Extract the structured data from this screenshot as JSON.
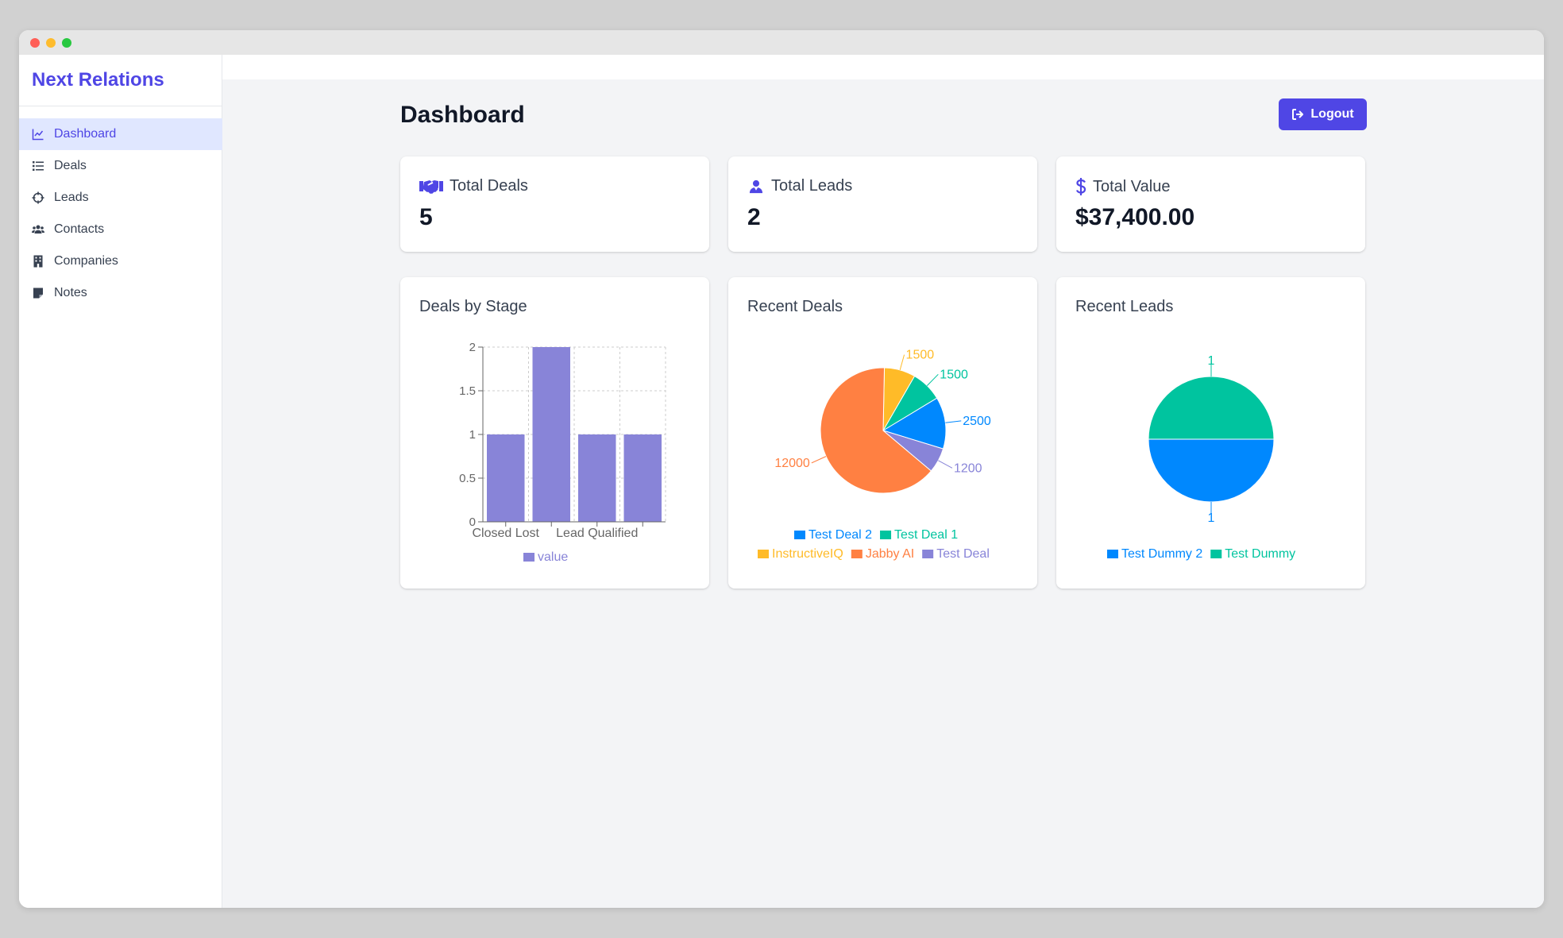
{
  "app": {
    "brand": "Next Relations"
  },
  "sidebar": {
    "items": [
      {
        "label": "Dashboard",
        "icon": "chart-line-icon",
        "active": true
      },
      {
        "label": "Deals",
        "icon": "list-icon",
        "active": false
      },
      {
        "label": "Leads",
        "icon": "crosshairs-icon",
        "active": false
      },
      {
        "label": "Contacts",
        "icon": "users-icon",
        "active": false
      },
      {
        "label": "Companies",
        "icon": "building-icon",
        "active": false
      },
      {
        "label": "Notes",
        "icon": "sticky-note-icon",
        "active": false
      }
    ]
  },
  "header": {
    "title": "Dashboard",
    "logout_label": "Logout"
  },
  "stats": {
    "total_deals": {
      "label": "Total Deals",
      "value": "5",
      "icon": "handshake-icon"
    },
    "total_leads": {
      "label": "Total Leads",
      "value": "2",
      "icon": "user-tie-icon"
    },
    "total_value": {
      "label": "Total Value",
      "value": "$37,400.00",
      "icon": "dollar-icon"
    }
  },
  "colors": {
    "accent": "#4f46e5",
    "bar": "#8884d8",
    "blue": "#0088fe",
    "green": "#00c49f",
    "yellow": "#ffbb28",
    "orange": "#ff8042",
    "purple": "#8884d8"
  },
  "chart_data": [
    {
      "title": "Deals by Stage",
      "type": "bar",
      "categories": [
        "Closed Lost",
        "",
        "Lead Qualified",
        ""
      ],
      "tick_labels": [
        "Closed Lost",
        "Lead Qualified"
      ],
      "series": [
        {
          "name": "value",
          "values": [
            1,
            2,
            1,
            1
          ],
          "color": "#8884d8"
        }
      ],
      "ylim": [
        0,
        2
      ],
      "yticks": [
        "0",
        "0.5",
        "1",
        "1.5",
        "2"
      ],
      "grid": true,
      "legend": "bottom"
    },
    {
      "title": "Recent Deals",
      "type": "pie",
      "slices": [
        {
          "name": "Test Deal 2",
          "value": 2500,
          "label": "2500",
          "color": "#0088fe"
        },
        {
          "name": "Test Deal 1",
          "value": 1500,
          "label": "1500",
          "color": "#00c49f"
        },
        {
          "name": "InstructiveIQ",
          "value": 1500,
          "label": "1500",
          "color": "#ffbb28"
        },
        {
          "name": "Jabby AI",
          "value": 12000,
          "label": "12000",
          "color": "#ff8042"
        },
        {
          "name": "Test Deal",
          "value": 1200,
          "label": "1200",
          "color": "#8884d8"
        }
      ],
      "legend": "bottom"
    },
    {
      "title": "Recent Leads",
      "type": "pie",
      "slices": [
        {
          "name": "Test Dummy 2",
          "value": 1,
          "label": "1",
          "color": "#0088fe"
        },
        {
          "name": "Test Dummy",
          "value": 1,
          "label": "1",
          "color": "#00c49f"
        }
      ],
      "legend": "bottom"
    }
  ]
}
